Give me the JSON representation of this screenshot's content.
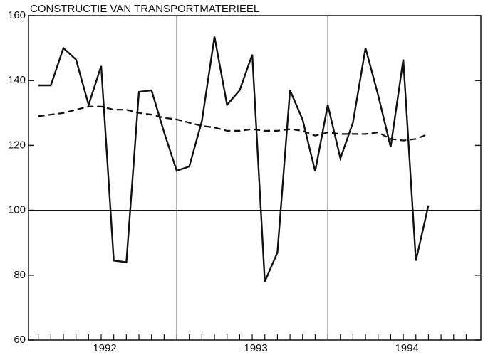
{
  "chart_data": {
    "type": "line",
    "title": "CONSTRUCTIE VAN TRANSPORTMATERIEEL",
    "categories": [
      null,
      null,
      null,
      null,
      null,
      null,
      "1992",
      null,
      null,
      null,
      null,
      null,
      null,
      null,
      null,
      null,
      null,
      null,
      "1993",
      null,
      null,
      null,
      null,
      null,
      null,
      null,
      null,
      null,
      null,
      null,
      "1994",
      null,
      null,
      null,
      null,
      null
    ],
    "series": [
      {
        "color": "#111111",
        "dashed": false,
        "values": [
          null,
          138.5,
          138.5,
          150,
          146.5,
          132.5,
          144.5,
          84.5,
          84,
          136.5,
          137,
          124,
          112.2,
          113.5,
          127.5,
          153.5,
          132.5,
          137,
          148,
          78,
          87,
          137,
          128,
          112,
          132.5,
          116,
          127,
          150,
          135.5,
          119.5,
          146.5,
          84.5,
          101.5,
          null,
          null,
          null
        ]
      },
      {
        "color": "#111111",
        "dashed": true,
        "values": [
          null,
          129,
          129.5,
          130,
          131,
          132,
          132,
          131,
          131,
          130,
          129.5,
          128.5,
          128,
          127,
          126,
          125.5,
          124.5,
          124.5,
          125,
          124.5,
          124.5,
          125,
          124.5,
          123,
          124,
          123.5,
          123.5,
          123.5,
          124,
          122,
          121.5,
          122,
          123.5,
          null,
          null,
          null
        ]
      }
    ],
    "ylim": [
      60,
      160
    ],
    "yticks": [
      60,
      80,
      100,
      120,
      140,
      160
    ],
    "reference_line": 100,
    "grid": false
  }
}
